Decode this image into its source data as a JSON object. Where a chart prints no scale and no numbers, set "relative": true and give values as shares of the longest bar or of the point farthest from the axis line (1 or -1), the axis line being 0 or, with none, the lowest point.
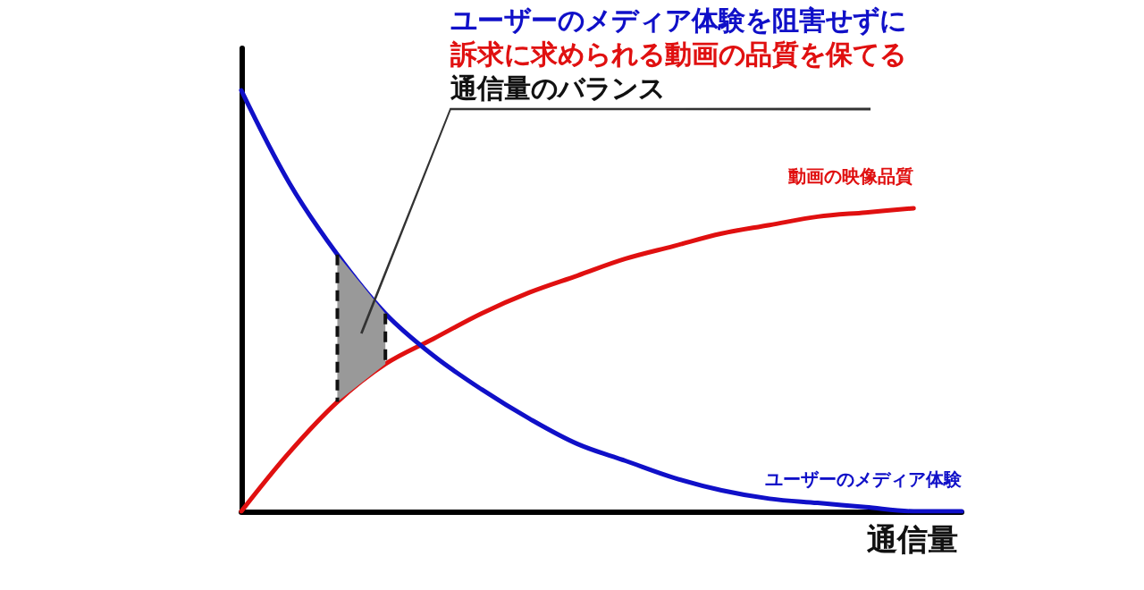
{
  "chart_data": {
    "type": "line",
    "relative": true,
    "xlabel": "通信量",
    "annotations": [
      "ユーザーのメディア体験を阻害せずに",
      "訴求に求められる動画の品質を保てる",
      "通信量のバランス"
    ],
    "categories": [
      null,
      null,
      null,
      null,
      null,
      null,
      null,
      null,
      null,
      null,
      null,
      null,
      null,
      null,
      null,
      null
    ],
    "series": [
      {
        "name": "動画の映像品質",
        "color": "#e01010",
        "values": [
          0,
          0.14,
          0.26,
          0.35,
          0.41,
          0.47,
          0.52,
          0.56,
          0.6,
          0.63,
          0.66,
          0.68,
          0.7,
          0.71,
          0.72,
          null
        ]
      },
      {
        "name": "ユーザーのメディア体験",
        "color": "#1010c8",
        "values": [
          1,
          0.78,
          0.61,
          0.47,
          0.37,
          0.29,
          0.22,
          0.16,
          0.12,
          0.08,
          0.05,
          0.03,
          0.02,
          0.01,
          0,
          0
        ]
      }
    ],
    "grid": false,
    "legend": false,
    "marker": "none",
    "line_style": "solid"
  }
}
